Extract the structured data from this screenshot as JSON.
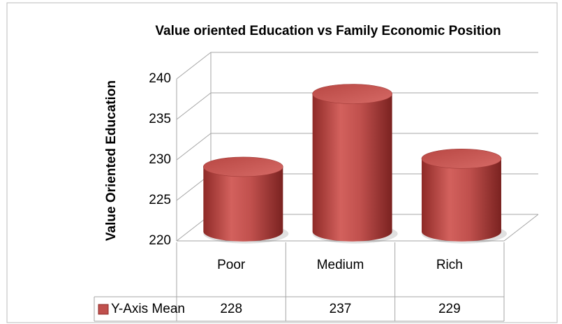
{
  "chart_data": {
    "type": "bar3d",
    "title": "Value oriented Education vs Family Economic Position",
    "y_label": "Value Oriented Education",
    "categories": [
      "Poor",
      "Medium",
      "Rich"
    ],
    "series": [
      {
        "name": "Y-Axis Mean",
        "color": "#c0504d",
        "values": [
          228,
          237,
          229
        ]
      }
    ],
    "ylim": [
      220,
      240
    ],
    "yticks": [
      220,
      225,
      230,
      235,
      240
    ],
    "grid": true
  }
}
